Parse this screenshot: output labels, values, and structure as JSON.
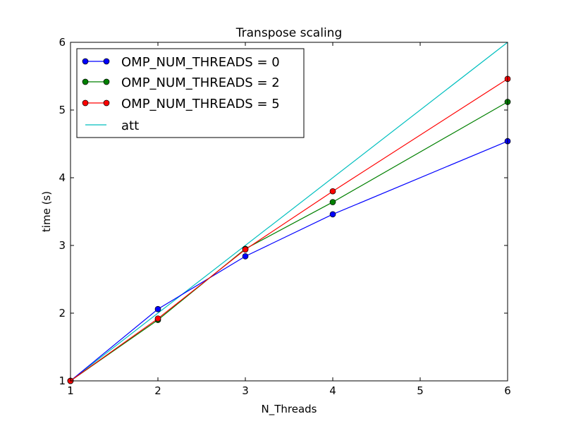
{
  "chart_data": {
    "type": "line",
    "title": "Transpose scaling",
    "xlabel": "N_Threads",
    "ylabel": "time (s)",
    "xlim": [
      1,
      6
    ],
    "ylim": [
      1,
      6
    ],
    "x_ticks": [
      1,
      2,
      3,
      4,
      5,
      6
    ],
    "y_ticks": [
      1,
      2,
      3,
      4,
      5,
      6
    ],
    "grid": false,
    "legend_position": "top-left",
    "series": [
      {
        "name": "OMP_NUM_THREADS = 0",
        "color": "#0000ff",
        "marker": "circle",
        "x": [
          1,
          2,
          3,
          4,
          6
        ],
        "y": [
          1.0,
          2.06,
          2.84,
          3.46,
          4.54
        ]
      },
      {
        "name": "OMP_NUM_THREADS = 2",
        "color": "#008000",
        "marker": "circle",
        "x": [
          1,
          2,
          3,
          4,
          6
        ],
        "y": [
          1.0,
          1.9,
          2.95,
          3.64,
          5.12
        ]
      },
      {
        "name": "OMP_NUM_THREADS = 5",
        "color": "#ff0000",
        "marker": "circle",
        "x": [
          1,
          2,
          3,
          4,
          6
        ],
        "y": [
          1.0,
          1.92,
          2.94,
          3.8,
          5.46
        ]
      },
      {
        "name": "att",
        "color": "#00bfbf",
        "marker": "none",
        "x": [
          1,
          6
        ],
        "y": [
          1,
          6
        ]
      }
    ]
  }
}
